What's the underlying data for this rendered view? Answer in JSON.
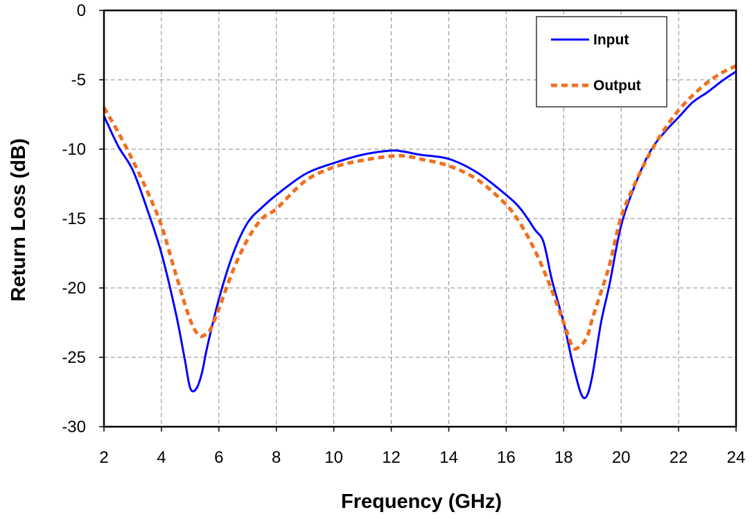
{
  "chart_data": {
    "type": "line",
    "xlabel": "Frequency (GHz)",
    "ylabel": "Return Loss (dB)",
    "xlim": [
      2,
      24
    ],
    "ylim": [
      -30,
      0
    ],
    "xticks": [
      2,
      4,
      6,
      8,
      10,
      12,
      14,
      16,
      18,
      20,
      22,
      24
    ],
    "yticks": [
      0,
      -5,
      -10,
      -15,
      -20,
      -25,
      -30
    ],
    "grid": true,
    "legend_position": "top-right",
    "series": [
      {
        "name": "Input",
        "color": "#0000ff",
        "style": "solid",
        "x": [
          2,
          2.5,
          3,
          3.5,
          4,
          4.5,
          4.8,
          5.0,
          5.2,
          5.4,
          5.6,
          6.0,
          6.5,
          7,
          7.5,
          8,
          9,
          10,
          11,
          12,
          12.5,
          13,
          14,
          15,
          16,
          16.5,
          17,
          17.3,
          17.6,
          18,
          18.3,
          18.6,
          18.8,
          19.0,
          19.3,
          19.6,
          20,
          20.5,
          21,
          21.5,
          22,
          22.5,
          23,
          23.5,
          24
        ],
        "y": [
          -7.6,
          -9.8,
          -11.5,
          -14.3,
          -17.5,
          -21.8,
          -25.0,
          -27.2,
          -27.3,
          -26.2,
          -24.2,
          -20.8,
          -17.5,
          -15.3,
          -14.2,
          -13.3,
          -11.8,
          -11.0,
          -10.4,
          -10.1,
          -10.2,
          -10.4,
          -10.7,
          -11.7,
          -13.3,
          -14.3,
          -15.8,
          -16.7,
          -19.5,
          -22.5,
          -25.3,
          -27.6,
          -27.8,
          -26.3,
          -22.5,
          -19.7,
          -15.5,
          -12.5,
          -10.2,
          -8.8,
          -7.7,
          -6.6,
          -5.9,
          -5.1,
          -4.4
        ]
      },
      {
        "name": "Output",
        "color": "#f07020",
        "style": "dashed",
        "x": [
          2,
          2.5,
          3,
          3.5,
          4,
          4.5,
          5.0,
          5.3,
          5.5,
          5.7,
          6.0,
          6.5,
          7,
          7.5,
          8,
          9,
          10,
          11,
          12,
          12.5,
          13,
          14,
          15,
          16,
          16.5,
          17,
          17.5,
          18,
          18.3,
          18.5,
          18.8,
          19.0,
          19.3,
          19.6,
          20,
          20.5,
          21,
          21.5,
          22,
          22.5,
          23,
          23.5,
          24
        ],
        "y": [
          -7.0,
          -8.8,
          -10.8,
          -13.0,
          -15.5,
          -19.0,
          -22.3,
          -23.4,
          -23.4,
          -23.0,
          -21.5,
          -18.7,
          -16.5,
          -15.0,
          -14.3,
          -12.3,
          -11.3,
          -10.8,
          -10.5,
          -10.5,
          -10.7,
          -11.2,
          -12.2,
          -14.0,
          -15.4,
          -17.3,
          -19.7,
          -22.5,
          -24.2,
          -24.3,
          -23.6,
          -22.2,
          -20.3,
          -18.3,
          -14.9,
          -12.4,
          -10.3,
          -8.6,
          -7.2,
          -6.1,
          -5.2,
          -4.5,
          -4.0
        ]
      }
    ]
  }
}
